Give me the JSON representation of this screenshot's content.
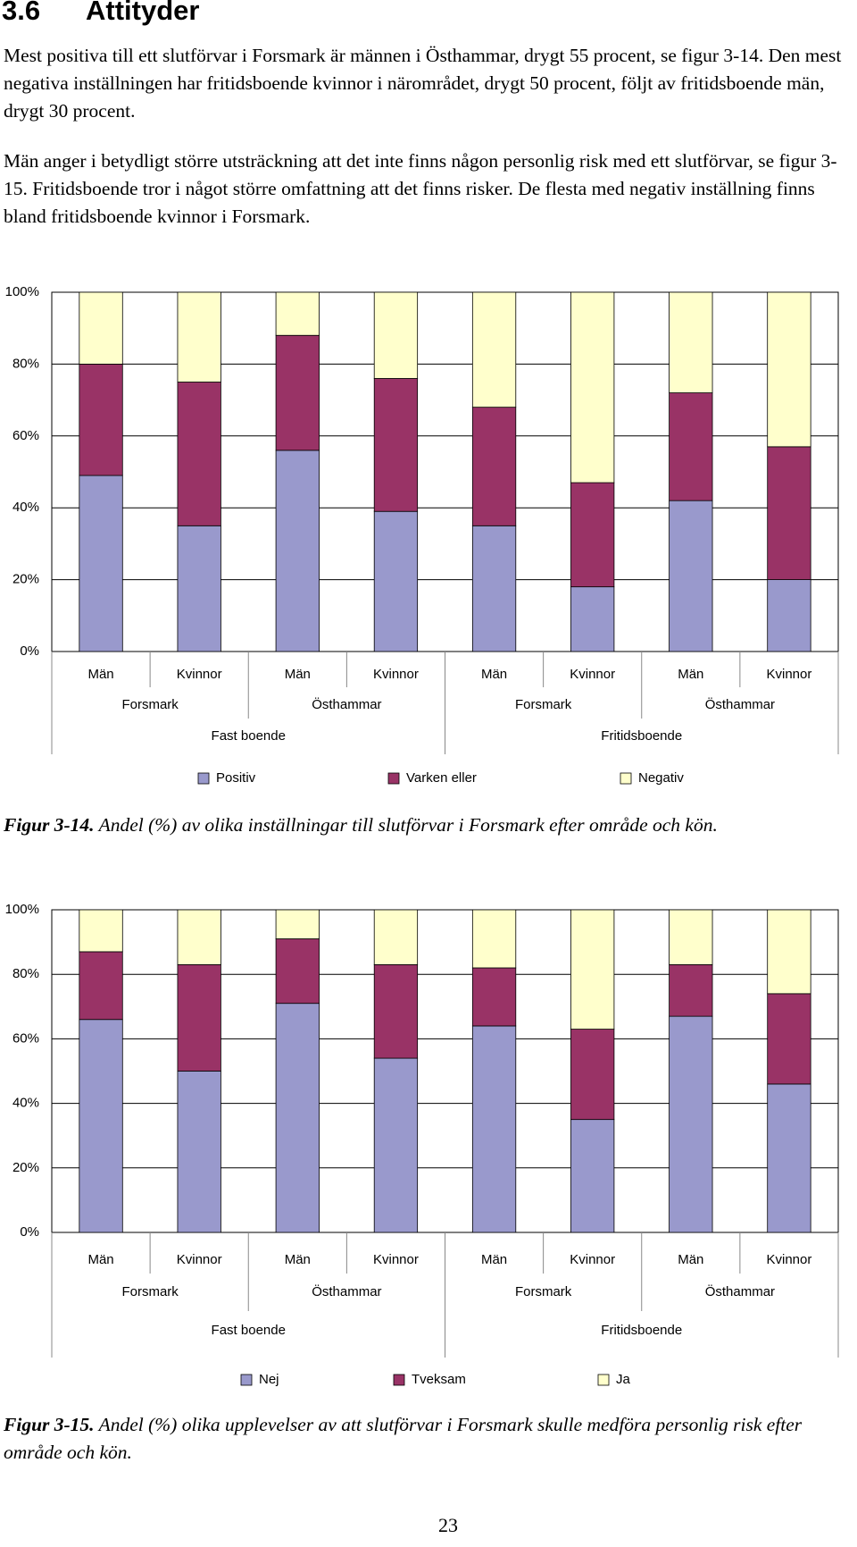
{
  "heading": {
    "number": "3.6",
    "title": "Attityder"
  },
  "paragraphs": [
    "Mest positiva till ett slutförvar i Forsmark är männen i Östhammar, drygt 55 procent, se figur 3-14. Den mest negativa inställningen har fritidsboende kvinnor i närområdet, drygt 50 procent, följt av fritidsboende män, drygt 30 procent.",
    "Män anger i betydligt större utsträckning att det inte finns någon personlig risk med ett slutförvar, se figur 3-15. Fritidsboende tror i något större omfattning att det finns risker. De flesta med negativ inställning finns bland fritidsboende kvinnor i Forsmark."
  ],
  "chart_data": [
    {
      "type": "bar",
      "stacked": true,
      "categories": [
        "Män",
        "Kvinnor",
        "Män",
        "Kvinnor",
        "Män",
        "Kvinnor",
        "Män",
        "Kvinnor"
      ],
      "groups": [
        "Forsmark",
        "Östhammar",
        "Forsmark",
        "Östhammar"
      ],
      "supergroups": [
        "Fast boende",
        "Fritidsboende"
      ],
      "series": [
        {
          "name": "Positiv",
          "color": "#9999cc",
          "values": [
            49,
            35,
            56,
            39,
            35,
            18,
            42,
            20
          ]
        },
        {
          "name": "Varken eller",
          "color": "#993366",
          "values": [
            31,
            40,
            32,
            37,
            33,
            29,
            30,
            37
          ]
        },
        {
          "name": "Negativ",
          "color": "#ffffcc",
          "values": [
            20,
            25,
            12,
            24,
            32,
            53,
            28,
            43
          ]
        }
      ],
      "ylim": [
        0,
        100
      ],
      "yticks": [
        {
          "value": 0,
          "label": "0%"
        },
        {
          "value": 20,
          "label": "20%"
        },
        {
          "value": 40,
          "label": "40%"
        },
        {
          "value": 60,
          "label": "60%"
        },
        {
          "value": 80,
          "label": "80%"
        },
        {
          "value": 100,
          "label": "100%"
        }
      ],
      "grid": true,
      "caption_label": "Figur 3-14.",
      "caption": "Andel (%) av olika inställningar till slutförvar i Forsmark efter område och kön."
    },
    {
      "type": "bar",
      "stacked": true,
      "categories": [
        "Män",
        "Kvinnor",
        "Män",
        "Kvinnor",
        "Män",
        "Kvinnor",
        "Män",
        "Kvinnor"
      ],
      "groups": [
        "Forsmark",
        "Östhammar",
        "Forsmark",
        "Östhammar"
      ],
      "supergroups": [
        "Fast boende",
        "Fritidsboende"
      ],
      "series": [
        {
          "name": "Nej",
          "color": "#9999cc",
          "values": [
            66,
            50,
            71,
            54,
            64,
            35,
            67,
            46
          ]
        },
        {
          "name": "Tveksam",
          "color": "#993366",
          "values": [
            21,
            33,
            20,
            29,
            18,
            28,
            16,
            28
          ]
        },
        {
          "name": "Ja",
          "color": "#ffffcc",
          "values": [
            13,
            17,
            9,
            17,
            18,
            37,
            17,
            26
          ]
        }
      ],
      "ylim": [
        0,
        100
      ],
      "yticks": [
        {
          "value": 0,
          "label": "0%"
        },
        {
          "value": 20,
          "label": "20%"
        },
        {
          "value": 40,
          "label": "40%"
        },
        {
          "value": 60,
          "label": "60%"
        },
        {
          "value": 80,
          "label": "80%"
        },
        {
          "value": 100,
          "label": "100%"
        }
      ],
      "grid": true,
      "caption_label": "Figur 3-15.",
      "caption": "Andel (%) olika upplevelser av att slutförvar i Forsmark skulle medföra personlig risk efter område och kön."
    }
  ],
  "page_number": "23"
}
